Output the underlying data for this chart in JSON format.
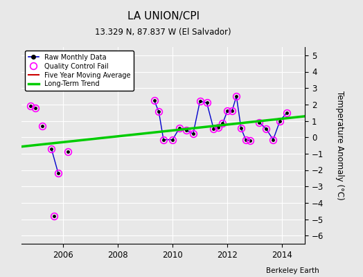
{
  "title": "LA UNION/CPI",
  "subtitle": "13.329 N, 87.837 W (El Salvador)",
  "ylabel": "Temperature Anomaly (°C)",
  "watermark": "Berkeley Earth",
  "xlim": [
    2004.5,
    2014.83
  ],
  "ylim": [
    -6.5,
    5.5
  ],
  "yticks": [
    -6,
    -5,
    -4,
    -3,
    -2,
    -1,
    0,
    1,
    2,
    3,
    4,
    5
  ],
  "xticks": [
    2006,
    2008,
    2010,
    2012,
    2014
  ],
  "background_color": "#e8e8e8",
  "raw_line_color": "#0000cc",
  "raw_dot_color": "#000000",
  "qc_fail_color": "#ff00ff",
  "trend_color": "#00cc00",
  "moving_avg_color": "#cc0000",
  "trend_x": [
    2004.5,
    2014.83
  ],
  "trend_y": [
    -0.57,
    1.28
  ],
  "connected_segments": [
    [
      [
        2005.58,
        2005.83
      ],
      [
        -0.7,
        -2.2
      ]
    ],
    [
      [
        2009.33,
        2009.5,
        2009.67,
        2010.0,
        2010.25,
        2010.5,
        2010.75,
        2011.0,
        2011.25,
        2011.5,
        2011.67,
        2011.83,
        2012.0,
        2012.17,
        2012.33,
        2012.5,
        2012.67,
        2012.83
      ],
      [
        2.25,
        1.55,
        -0.15,
        -0.15,
        0.55,
        0.45,
        0.2,
        2.2,
        2.1,
        0.5,
        0.6,
        0.85,
        1.6,
        1.6,
        2.5,
        0.55,
        -0.15,
        -0.2
      ]
    ],
    [
      [
        2013.17,
        2013.42,
        2013.67,
        2013.92,
        2014.17
      ],
      [
        0.9,
        0.5,
        -0.15,
        1.0,
        1.5
      ]
    ]
  ],
  "isolated_dots_x": [
    2004.83,
    2005.0,
    2005.25,
    2006.17,
    2005.67
  ],
  "isolated_dots_y": [
    1.9,
    1.8,
    0.7,
    -0.9,
    -4.8
  ],
  "all_qc_x": [
    2004.83,
    2005.0,
    2005.25,
    2005.58,
    2005.83,
    2006.17,
    2005.67,
    2009.33,
    2009.5,
    2009.67,
    2010.0,
    2010.25,
    2010.5,
    2010.75,
    2011.0,
    2011.25,
    2011.5,
    2011.67,
    2011.83,
    2012.0,
    2012.17,
    2012.33,
    2012.5,
    2012.67,
    2012.83,
    2013.17,
    2013.42,
    2013.67,
    2013.92,
    2014.17
  ],
  "all_qc_y": [
    1.9,
    1.8,
    0.7,
    -0.7,
    -2.2,
    -0.9,
    -4.8,
    2.25,
    1.55,
    -0.15,
    -0.15,
    0.55,
    0.45,
    0.2,
    2.2,
    2.1,
    0.5,
    0.6,
    0.85,
    1.6,
    1.6,
    2.5,
    0.55,
    -0.15,
    -0.2,
    0.9,
    0.5,
    -0.15,
    1.0,
    1.5
  ]
}
